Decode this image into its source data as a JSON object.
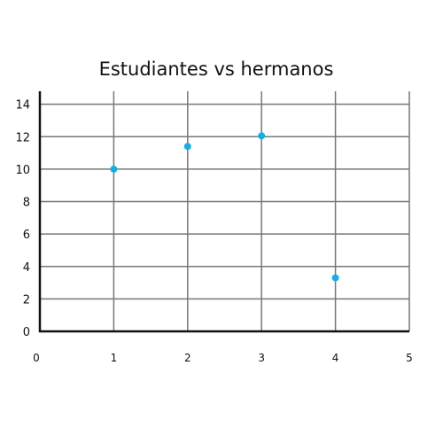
{
  "chart_data": {
    "type": "scatter",
    "title": "Estudiantes vs hermanos",
    "xlabel": "",
    "ylabel": "",
    "xlim": [
      0,
      5
    ],
    "ylim": [
      0,
      14.8
    ],
    "x_ticks": [
      "0",
      "1",
      "2",
      "3",
      "4",
      "5"
    ],
    "y_ticks": [
      "0",
      "2",
      "4",
      "6",
      "8",
      "10",
      "12",
      "14"
    ],
    "grid": true,
    "legend": "none",
    "point_color": "#1aaee0",
    "points": [
      {
        "x": 1,
        "y": 10
      },
      {
        "x": 2,
        "y": 11.4
      },
      {
        "x": 3,
        "y": 12.05
      },
      {
        "x": 4,
        "y": 3.3
      }
    ]
  }
}
